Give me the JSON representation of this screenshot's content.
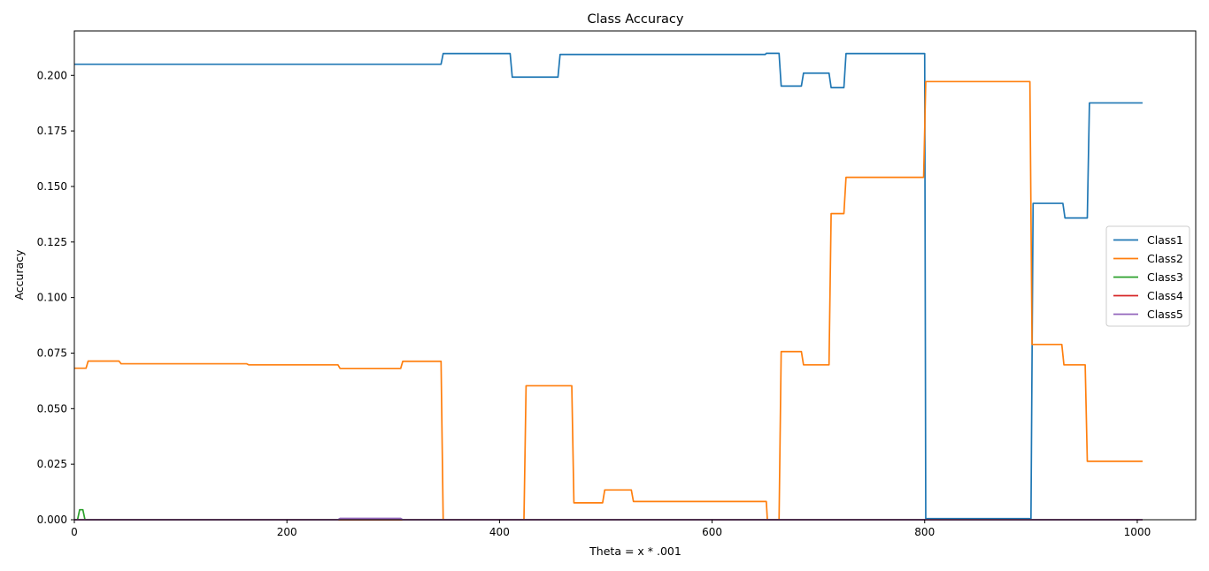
{
  "chart_data": {
    "type": "line",
    "title": "Class Accuracy",
    "xlabel": "Theta = x * .001",
    "ylabel": "Accuracy",
    "xlim": [
      0,
      1055
    ],
    "ylim": [
      0,
      0.22
    ],
    "xticks": [
      0,
      200,
      400,
      600,
      800,
      1000
    ],
    "yticks": [
      0.0,
      0.025,
      0.05,
      0.075,
      0.1,
      0.125,
      0.15,
      0.175,
      0.2
    ],
    "ytick_labels": [
      "0.000",
      "0.025",
      "0.050",
      "0.075",
      "0.100",
      "0.125",
      "0.150",
      "0.175",
      "0.200"
    ],
    "grid": false,
    "legend_position": "center-right",
    "series": [
      {
        "name": "Class1",
        "color": "#1f77b4",
        "points": [
          [
            0,
            0.205
          ],
          [
            345,
            0.205
          ],
          [
            347,
            0.2098
          ],
          [
            410,
            0.2098
          ],
          [
            412,
            0.1992
          ],
          [
            455,
            0.1992
          ],
          [
            457,
            0.2094
          ],
          [
            650,
            0.2094
          ],
          [
            651,
            0.2099
          ],
          [
            663,
            0.2099
          ],
          [
            665,
            0.1952
          ],
          [
            684,
            0.1952
          ],
          [
            686,
            0.201
          ],
          [
            710,
            0.201
          ],
          [
            712,
            0.1945
          ],
          [
            724,
            0.1945
          ],
          [
            726,
            0.2098
          ],
          [
            800,
            0.2098
          ],
          [
            801,
            0.0005
          ],
          [
            900,
            0.0005
          ],
          [
            902,
            0.1424
          ],
          [
            930,
            0.1424
          ],
          [
            932,
            0.1358
          ],
          [
            953,
            0.1358
          ],
          [
            955,
            0.1876
          ],
          [
            1005,
            0.1876
          ]
        ]
      },
      {
        "name": "Class2",
        "color": "#ff7f0e",
        "points": [
          [
            0,
            0.0682
          ],
          [
            11,
            0.0682
          ],
          [
            13,
            0.0714
          ],
          [
            42,
            0.0714
          ],
          [
            44,
            0.0702
          ],
          [
            162,
            0.0702
          ],
          [
            164,
            0.0697
          ],
          [
            248,
            0.0697
          ],
          [
            250,
            0.0681
          ],
          [
            307,
            0.0681
          ],
          [
            309,
            0.0713
          ],
          [
            345,
            0.0713
          ],
          [
            347,
            0
          ],
          [
            423,
            0
          ],
          [
            425,
            0.0603
          ],
          [
            468,
            0.0603
          ],
          [
            470,
            0.0076
          ],
          [
            497,
            0.0076
          ],
          [
            499,
            0.0134
          ],
          [
            524,
            0.0134
          ],
          [
            526,
            0.0082
          ],
          [
            651,
            0.0082
          ],
          [
            652,
            0
          ],
          [
            663,
            0
          ],
          [
            665,
            0.0757
          ],
          [
            684,
            0.0757
          ],
          [
            686,
            0.0697
          ],
          [
            710,
            0.0697
          ],
          [
            712,
            0.1378
          ],
          [
            724,
            0.1378
          ],
          [
            726,
            0.1541
          ],
          [
            799,
            0.1541
          ],
          [
            801,
            0.1972
          ],
          [
            899,
            0.1972
          ],
          [
            901,
            0.0789
          ],
          [
            929,
            0.0789
          ],
          [
            931,
            0.0697
          ],
          [
            951,
            0.0697
          ],
          [
            953,
            0.0263
          ],
          [
            1005,
            0.0263
          ]
        ]
      },
      {
        "name": "Class3",
        "color": "#2ca02c",
        "points": [
          [
            0,
            0
          ],
          [
            3,
            0
          ],
          [
            5,
            0.0045
          ],
          [
            8,
            0.0045
          ],
          [
            10,
            0
          ],
          [
            1005,
            0
          ]
        ]
      },
      {
        "name": "Class4",
        "color": "#d62728",
        "points": [
          [
            0,
            0
          ],
          [
            1005,
            0
          ]
        ]
      },
      {
        "name": "Class5",
        "color": "#9467bd",
        "points": [
          [
            0,
            0
          ],
          [
            248,
            0
          ],
          [
            250,
            0.0006
          ],
          [
            307,
            0.0006
          ],
          [
            309,
            0
          ],
          [
            1005,
            0
          ]
        ]
      }
    ]
  }
}
